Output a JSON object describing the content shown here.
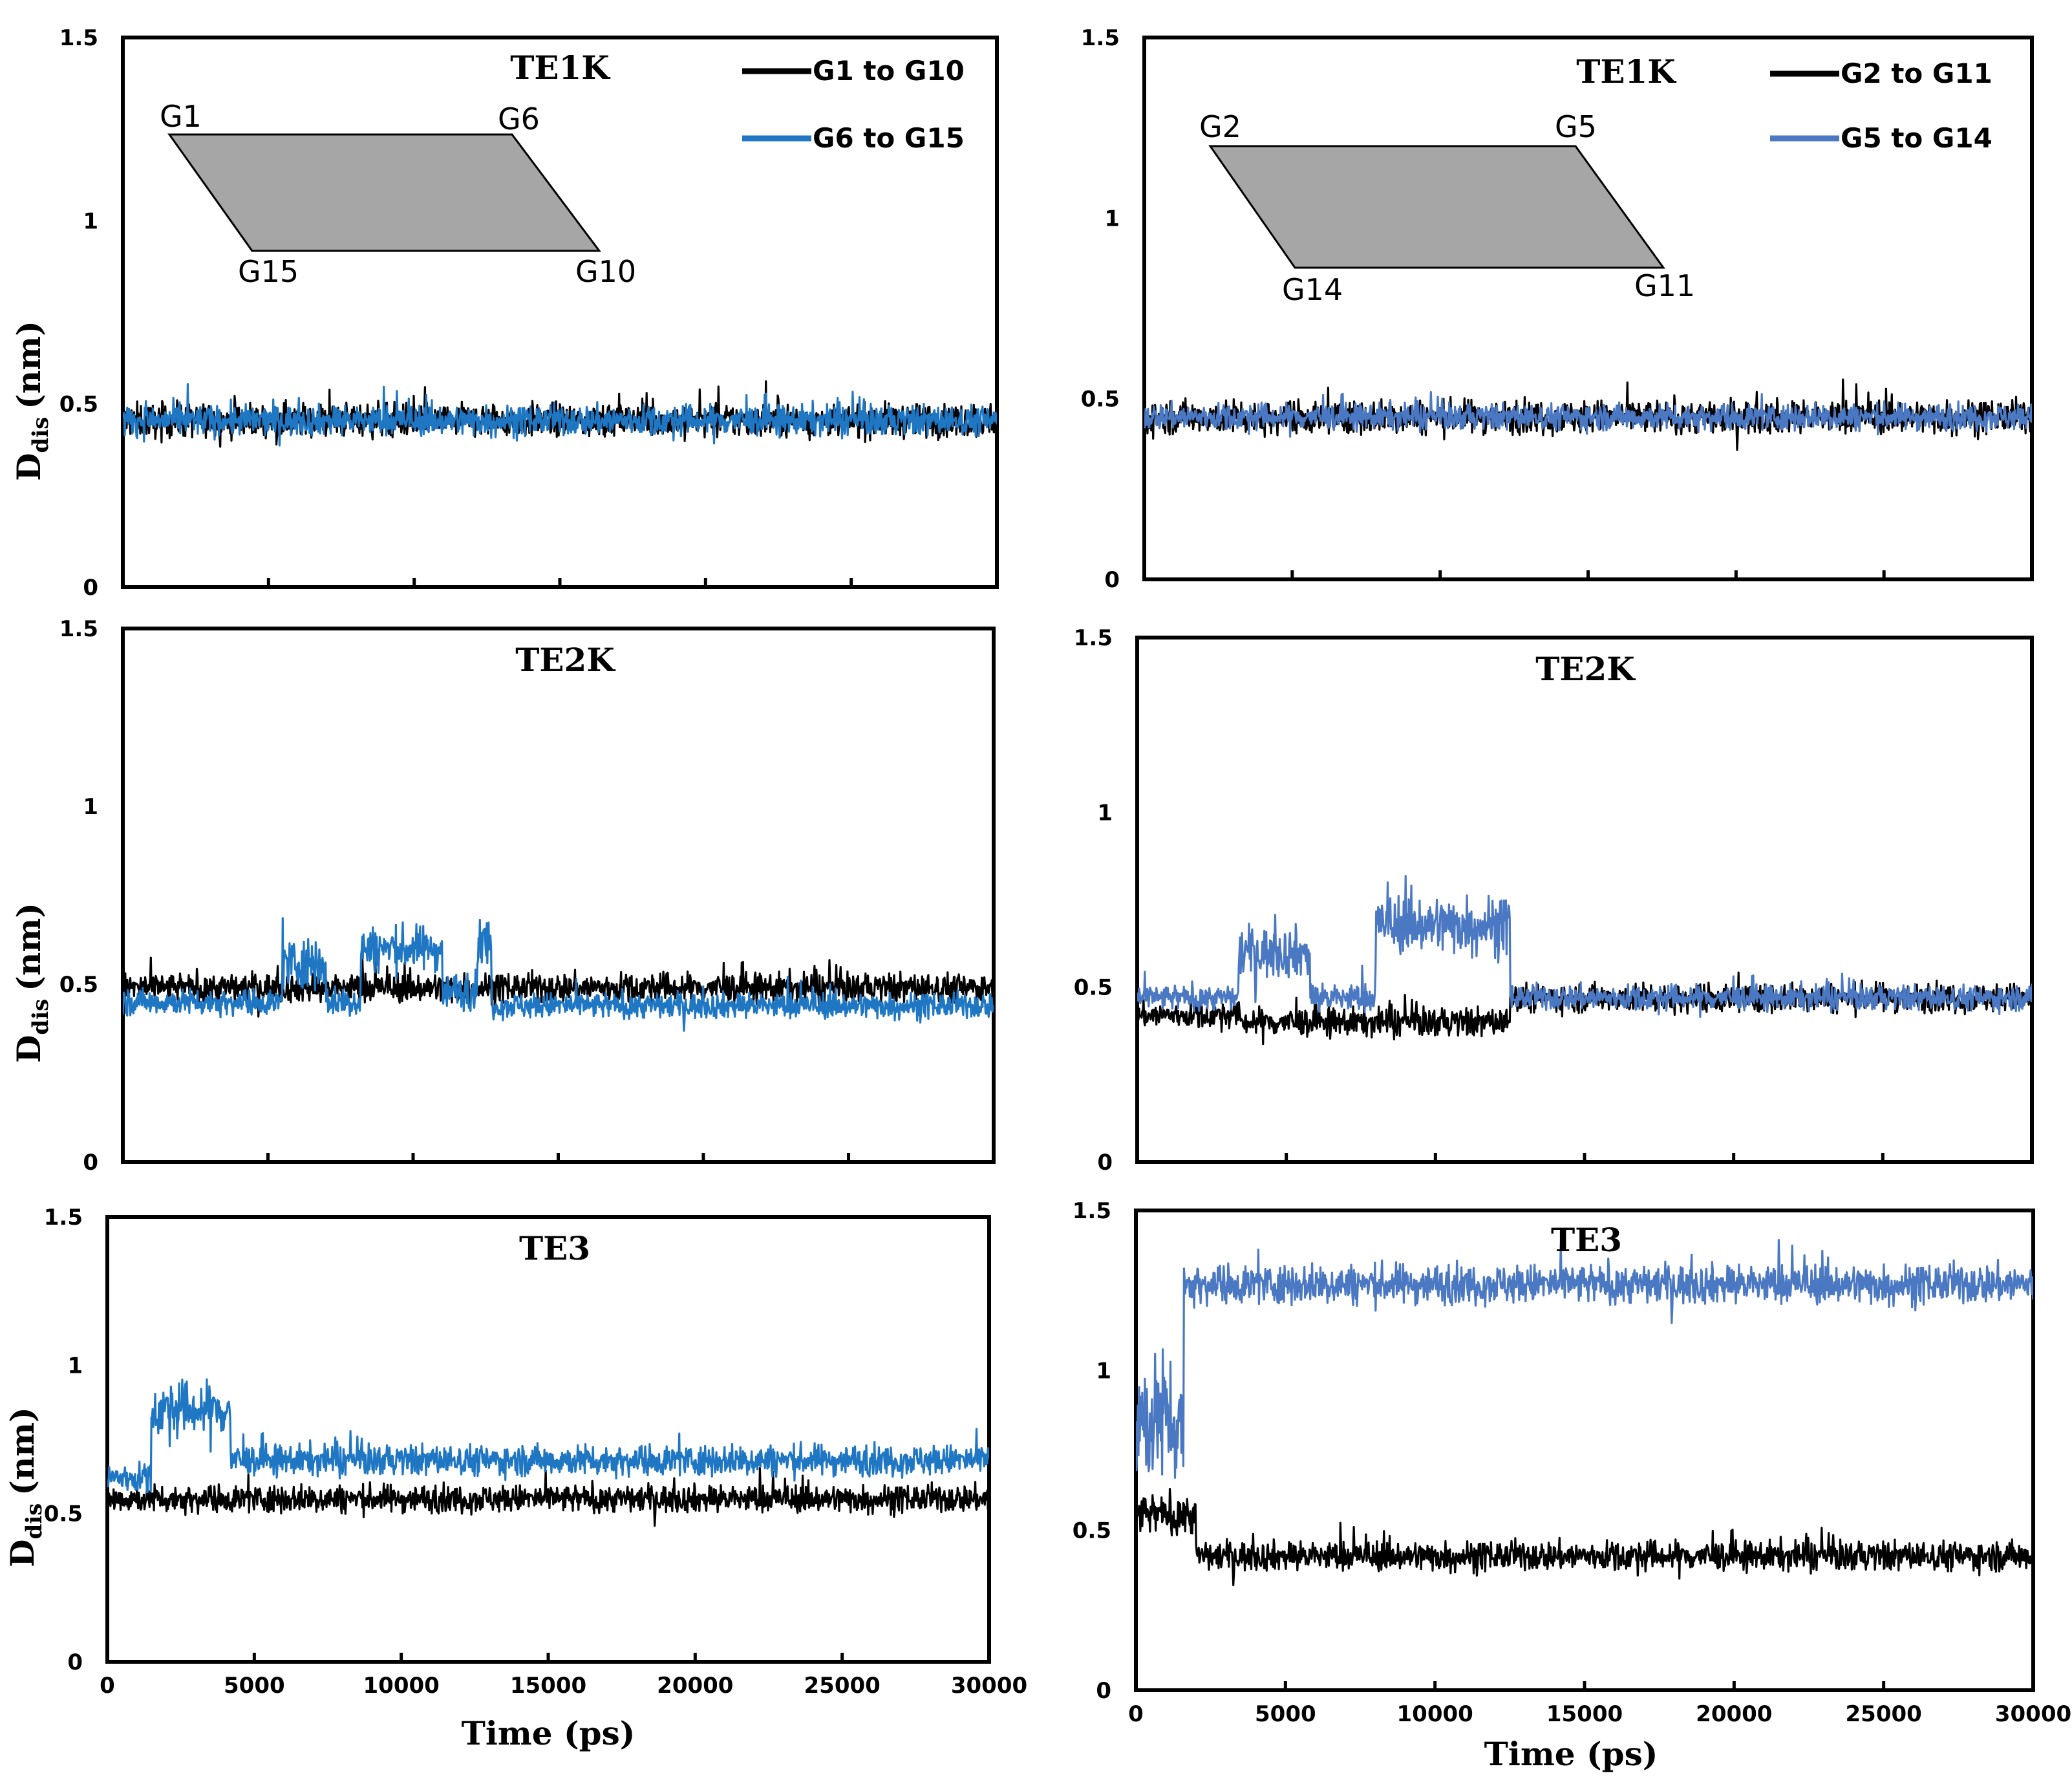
{
  "figure": {
    "y_axis_title_main": "D",
    "y_axis_title_sub": "dis",
    "y_axis_title_unit": "(nm)",
    "x_axis_title": "Time (ps)"
  },
  "colors": {
    "black_series": "#000000",
    "blue_series_left": "#1f77c4",
    "blue_series_right": "#4a78c2",
    "inset_fill": "#a6a6a6"
  },
  "chart_data": [
    {
      "type": "line",
      "title": "TE1K",
      "xlim": [
        0,
        30000
      ],
      "ylim": [
        0,
        1.5
      ],
      "yticks": [
        "0",
        "0.5",
        "1",
        "1.5"
      ],
      "xticks": [],
      "legend": [
        "G1 to G10",
        "G6 to G15"
      ],
      "inset": {
        "labels": [
          "G1",
          "G6",
          "G15",
          "G10"
        ]
      },
      "series": [
        {
          "name": "G1 to G10",
          "color": "black",
          "segments": [
            [
              0,
              30000,
              0.455,
              0.045
            ]
          ]
        },
        {
          "name": "G6 to G15",
          "color": "blue",
          "segments": [
            [
              0,
              30000,
              0.455,
              0.04
            ]
          ]
        }
      ]
    },
    {
      "type": "line",
      "title": "TE1K",
      "xlim": [
        0,
        30000
      ],
      "ylim": [
        0,
        1.5
      ],
      "yticks": [
        "0",
        "0.5",
        "1",
        "1.5"
      ],
      "xticks": [],
      "legend": [
        "G2 to G11",
        "G5 to G14"
      ],
      "inset": {
        "labels": [
          "G2",
          "G5",
          "G14",
          "G11"
        ]
      },
      "series": [
        {
          "name": "G2 to G11",
          "color": "black",
          "segments": [
            [
              0,
              30000,
              0.45,
              0.045
            ]
          ]
        },
        {
          "name": "G5 to G14",
          "color": "blue",
          "segments": [
            [
              0,
              30000,
              0.45,
              0.035
            ]
          ]
        }
      ]
    },
    {
      "type": "line",
      "title": "TE2K",
      "xlim": [
        0,
        30000
      ],
      "ylim": [
        0,
        1.5
      ],
      "yticks": [
        "0",
        "0.5",
        "1",
        "1.5"
      ],
      "xticks": [],
      "series": [
        {
          "name": "black",
          "color": "black",
          "segments": [
            [
              0,
              30000,
              0.49,
              0.04
            ]
          ]
        },
        {
          "name": "blue",
          "color": "blue",
          "segments": [
            [
              0,
              5500,
              0.45,
              0.035
            ],
            [
              5500,
              7000,
              0.56,
              0.07
            ],
            [
              7000,
              8200,
              0.45,
              0.04
            ],
            [
              8200,
              11000,
              0.6,
              0.06
            ],
            [
              11000,
              12200,
              0.48,
              0.05
            ],
            [
              12200,
              12700,
              0.62,
              0.07
            ],
            [
              12700,
              30000,
              0.44,
              0.035
            ]
          ]
        }
      ]
    },
    {
      "type": "line",
      "title": "TE2K",
      "xlim": [
        0,
        30000
      ],
      "ylim": [
        0,
        1.5
      ],
      "yticks": [
        "0",
        "0.5",
        "1",
        "1.5"
      ],
      "xticks": [],
      "series": [
        {
          "name": "black",
          "color": "black",
          "segments": [
            [
              0,
              3500,
              0.42,
              0.035
            ],
            [
              3500,
              12500,
              0.4,
              0.04
            ],
            [
              12500,
              30000,
              0.47,
              0.04
            ]
          ]
        },
        {
          "name": "blue",
          "color": "blue",
          "segments": [
            [
              0,
              3400,
              0.47,
              0.035
            ],
            [
              3400,
              5800,
              0.6,
              0.07
            ],
            [
              5800,
              8000,
              0.47,
              0.04
            ],
            [
              8000,
              12500,
              0.68,
              0.08
            ],
            [
              12500,
              30000,
              0.47,
              0.035
            ]
          ]
        }
      ]
    },
    {
      "type": "line",
      "title": "TE3",
      "xlim": [
        0,
        30000
      ],
      "ylim": [
        0,
        1.5
      ],
      "yticks": [
        "0",
        "0.5",
        "1",
        "1.5"
      ],
      "xticks": [
        "0",
        "5000",
        "10000",
        "15000",
        "20000",
        "25000",
        "30000"
      ],
      "xlabel": "Time (ps)",
      "series": [
        {
          "name": "black",
          "color": "black",
          "segments": [
            [
              0,
              30000,
              0.55,
              0.045
            ]
          ]
        },
        {
          "name": "blue",
          "color": "blue",
          "segments": [
            [
              0,
              1500,
              0.62,
              0.05
            ],
            [
              1500,
              4200,
              0.85,
              0.09
            ],
            [
              4200,
              30000,
              0.68,
              0.05
            ]
          ]
        }
      ]
    },
    {
      "type": "line",
      "title": "TE3",
      "xlim": [
        0,
        30000
      ],
      "ylim": [
        0,
        1.5
      ],
      "yticks": [
        "0",
        "0.5",
        "1",
        "1.5"
      ],
      "xticks": [
        "0",
        "5000",
        "10000",
        "15000",
        "20000",
        "25000",
        "30000"
      ],
      "xlabel": "Time (ps)",
      "series": [
        {
          "name": "black",
          "color": "black",
          "segments": [
            [
              0,
              2000,
              0.55,
              0.06
            ],
            [
              2000,
              30000,
              0.42,
              0.045
            ]
          ]
        },
        {
          "name": "blue",
          "color": "blue",
          "segments": [
            [
              0,
              1600,
              0.85,
              0.2
            ],
            [
              1600,
              30000,
              1.27,
              0.06
            ]
          ]
        }
      ]
    }
  ]
}
